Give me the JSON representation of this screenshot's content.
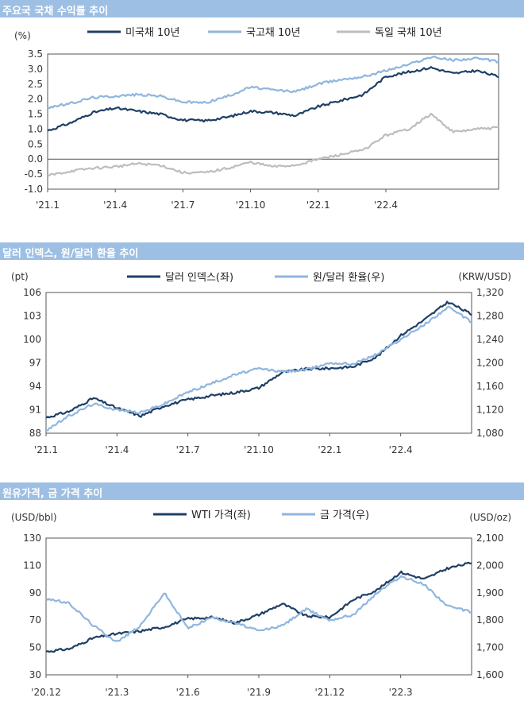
{
  "panels": [
    {
      "title": "주요국 국채 수익률 추이"
    },
    {
      "title": "달러 인덱스, 원/달러 환율 추이"
    },
    {
      "title": "원유가격, 금 가격 추이"
    }
  ],
  "chart_data": [
    {
      "type": "line",
      "title": "주요국 국채 수익률 추이",
      "ylabel": "(%)",
      "ylim": [
        -1.0,
        3.5
      ],
      "yticks": [
        "3.5",
        "3.0",
        "2.5",
        "2.0",
        "1.5",
        "1.0",
        "0.5",
        "0.0",
        "-0.5",
        "-1.0"
      ],
      "xticks": [
        "'21.1",
        "'21.4",
        "'21.7",
        "'21.10",
        "'22.1",
        "'22.4"
      ],
      "x_range": [
        "2021-01",
        "2022-09"
      ],
      "series": [
        {
          "name": "미국채 10년",
          "color": "#1f3f66",
          "x": [
            "2021-01",
            "2021-02",
            "2021-03",
            "2021-04",
            "2021-05",
            "2021-06",
            "2021-07",
            "2021-08",
            "2021-09",
            "2021-10",
            "2021-11",
            "2021-12",
            "2022-01",
            "2022-02",
            "2022-03",
            "2022-04",
            "2022-05",
            "2022-06",
            "2022-07",
            "2022-08",
            "2022-09"
          ],
          "values": [
            0.95,
            1.2,
            1.55,
            1.7,
            1.6,
            1.5,
            1.3,
            1.28,
            1.4,
            1.6,
            1.55,
            1.45,
            1.75,
            1.95,
            2.15,
            2.75,
            2.9,
            3.05,
            2.85,
            2.95,
            2.75
          ]
        },
        {
          "name": "국고채 10년",
          "color": "#8fb6de",
          "x": [
            "2021-01",
            "2021-02",
            "2021-03",
            "2021-04",
            "2021-05",
            "2021-06",
            "2021-07",
            "2021-08",
            "2021-09",
            "2021-10",
            "2021-11",
            "2021-12",
            "2022-01",
            "2022-02",
            "2022-03",
            "2022-04",
            "2022-05",
            "2022-06",
            "2022-07",
            "2022-08",
            "2022-09"
          ],
          "values": [
            1.72,
            1.85,
            2.05,
            2.1,
            2.15,
            2.1,
            1.9,
            1.88,
            2.1,
            2.4,
            2.3,
            2.25,
            2.5,
            2.65,
            2.75,
            2.95,
            3.15,
            3.4,
            3.3,
            3.35,
            3.25
          ]
        },
        {
          "name": "독일 국채 10년",
          "color": "#bdbdbd",
          "x": [
            "2021-01",
            "2021-02",
            "2021-03",
            "2021-04",
            "2021-05",
            "2021-06",
            "2021-07",
            "2021-08",
            "2021-09",
            "2021-10",
            "2021-11",
            "2021-12",
            "2022-01",
            "2022-02",
            "2022-03",
            "2022-04",
            "2022-05",
            "2022-06",
            "2022-07",
            "2022-08",
            "2022-09"
          ],
          "values": [
            -0.55,
            -0.4,
            -0.3,
            -0.25,
            -0.15,
            -0.2,
            -0.45,
            -0.45,
            -0.3,
            -0.1,
            -0.25,
            -0.2,
            0.0,
            0.15,
            0.3,
            0.8,
            1.0,
            1.5,
            0.9,
            1.0,
            1.05
          ]
        }
      ]
    },
    {
      "type": "line",
      "title": "달러 인덱스, 원/달러 환율 추이",
      "ylabel_left": "(pt)",
      "ylabel_right": "(KRW/USD)",
      "ylim_left": [
        88,
        106
      ],
      "ylim_right": [
        1080,
        1320
      ],
      "yticks_left": [
        "106",
        "103",
        "100",
        "97",
        "94",
        "91",
        "88"
      ],
      "yticks_right": [
        "1,320",
        "1,280",
        "1,240",
        "1,200",
        "1,160",
        "1,120",
        "1,080"
      ],
      "xticks": [
        "'21.1",
        "'21.4",
        "'21.7",
        "'21.10",
        "'22.1",
        "'22.4"
      ],
      "x_range": [
        "2021-01",
        "2022-07"
      ],
      "series": [
        {
          "name": "달러 인덱스(좌)",
          "axis": "left",
          "color": "#1f3f66",
          "x": [
            "2021-01",
            "2021-02",
            "2021-03",
            "2021-04",
            "2021-05",
            "2021-06",
            "2021-07",
            "2021-08",
            "2021-09",
            "2021-10",
            "2021-11",
            "2021-12",
            "2022-01",
            "2022-02",
            "2022-03",
            "2022-04",
            "2022-05",
            "2022-06",
            "2022-07"
          ],
          "values": [
            90.0,
            90.8,
            92.5,
            91.2,
            90.2,
            91.5,
            92.3,
            92.8,
            93.2,
            93.8,
            95.8,
            96.2,
            96.3,
            96.5,
            97.8,
            100.5,
            102.5,
            104.8,
            103.2
          ]
        },
        {
          "name": "원/달러 환율(우)",
          "axis": "right",
          "color": "#8fb6de",
          "x": [
            "2021-01",
            "2021-02",
            "2021-03",
            "2021-04",
            "2021-05",
            "2021-06",
            "2021-07",
            "2021-08",
            "2021-09",
            "2021-10",
            "2021-11",
            "2021-12",
            "2022-01",
            "2022-02",
            "2022-03",
            "2022-04",
            "2022-05",
            "2022-06",
            "2022-07"
          ],
          "values": [
            1085,
            1110,
            1130,
            1120,
            1115,
            1130,
            1150,
            1165,
            1180,
            1190,
            1185,
            1188,
            1200,
            1198,
            1215,
            1240,
            1265,
            1295,
            1270
          ]
        }
      ]
    },
    {
      "type": "line",
      "title": "원유가격, 금 가격 추이",
      "ylabel_left": "(USD/bbl)",
      "ylabel_right": "(USD/oz)",
      "ylim_left": [
        30,
        130
      ],
      "ylim_right": [
        1600,
        2100
      ],
      "yticks_left": [
        "130",
        "110",
        "90",
        "70",
        "50",
        "30"
      ],
      "yticks_right": [
        "2,100",
        "2,000",
        "1,900",
        "1,800",
        "1,700",
        "1,600"
      ],
      "xticks": [
        "'20.12",
        "'21.3",
        "'21.6",
        "'21.9",
        "'21.12",
        "'22.3"
      ],
      "x_range": [
        "2020-12",
        "2022-06"
      ],
      "series": [
        {
          "name": "WTI 가격(좌)",
          "axis": "left",
          "color": "#1f3f66",
          "x": [
            "2020-12",
            "2021-01",
            "2021-02",
            "2021-03",
            "2021-04",
            "2021-05",
            "2021-06",
            "2021-07",
            "2021-08",
            "2021-09",
            "2021-10",
            "2021-11",
            "2021-12",
            "2022-01",
            "2022-02",
            "2022-03",
            "2022-04",
            "2022-05",
            "2022-06"
          ],
          "values": [
            47,
            49,
            57,
            60,
            62,
            65,
            71,
            72,
            68,
            74,
            82,
            73,
            72,
            85,
            92,
            105,
            100,
            108,
            112
          ]
        },
        {
          "name": "금 가격(우)",
          "axis": "right",
          "color": "#8fb6de",
          "x": [
            "2020-12",
            "2021-01",
            "2021-02",
            "2021-03",
            "2021-04",
            "2021-05",
            "2021-06",
            "2021-07",
            "2021-08",
            "2021-09",
            "2021-10",
            "2021-11",
            "2021-12",
            "2022-01",
            "2022-02",
            "2022-03",
            "2022-04",
            "2022-05",
            "2022-06"
          ],
          "values": [
            1880,
            1860,
            1780,
            1720,
            1780,
            1900,
            1770,
            1810,
            1790,
            1760,
            1780,
            1840,
            1800,
            1820,
            1900,
            1960,
            1930,
            1850,
            1830
          ]
        }
      ]
    }
  ]
}
